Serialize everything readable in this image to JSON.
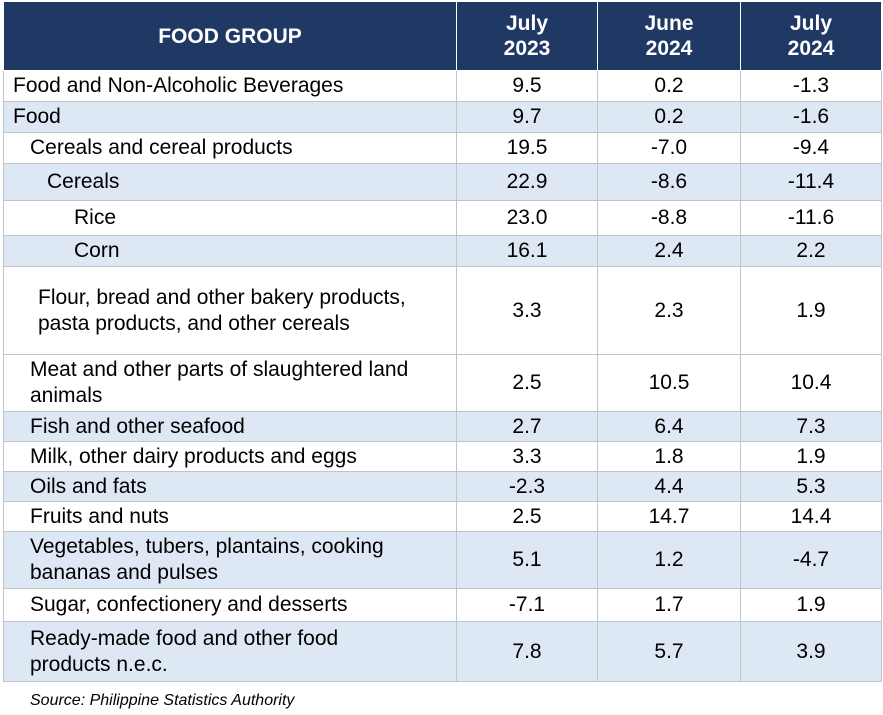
{
  "header": {
    "food_group": "FOOD GROUP",
    "col1_line1": "July",
    "col1_line2": "2023",
    "col2_line1": "June",
    "col2_line2": "2024",
    "col3_line1": "July",
    "col3_line2": "2024"
  },
  "rows": [
    {
      "label": "Food and Non-Alcoholic Beverages",
      "jul2023": "9.5",
      "jun2024": "0.2",
      "jul2024": "-1.3"
    },
    {
      "label": "Food",
      "jul2023": "9.7",
      "jun2024": "0.2",
      "jul2024": "-1.6"
    },
    {
      "label": "Cereals and cereal products",
      "jul2023": "19.5",
      "jun2024": "-7.0",
      "jul2024": "-9.4"
    },
    {
      "label": "Cereals",
      "jul2023": "22.9",
      "jun2024": "-8.6",
      "jul2024": "-11.4"
    },
    {
      "label": "Rice",
      "jul2023": "23.0",
      "jun2024": "-8.8",
      "jul2024": "-11.6"
    },
    {
      "label": "Corn",
      "jul2023": "16.1",
      "jun2024": "2.4",
      "jul2024": "2.2"
    },
    {
      "label": "Flour, bread and other bakery products, pasta products, and other cereals",
      "jul2023": "3.3",
      "jun2024": "2.3",
      "jul2024": "1.9"
    },
    {
      "label": "Meat and other parts of slaughtered land animals",
      "jul2023": "2.5",
      "jun2024": "10.5",
      "jul2024": "10.4"
    },
    {
      "label": "Fish and other seafood",
      "jul2023": "2.7",
      "jun2024": "6.4",
      "jul2024": "7.3"
    },
    {
      "label": "Milk, other dairy products and eggs",
      "jul2023": "3.3",
      "jun2024": "1.8",
      "jul2024": "1.9"
    },
    {
      "label": "Oils and fats",
      "jul2023": "-2.3",
      "jun2024": "4.4",
      "jul2024": "5.3"
    },
    {
      "label": "Fruits and nuts",
      "jul2023": "2.5",
      "jun2024": "14.7",
      "jul2024": "14.4"
    },
    {
      "label": "Vegetables, tubers, plantains, cooking bananas and pulses",
      "jul2023": "5.1",
      "jun2024": "1.2",
      "jul2024": "-4.7"
    },
    {
      "label": "Sugar, confectionery and desserts",
      "jul2023": "-7.1",
      "jun2024": "1.7",
      "jul2024": "1.9"
    },
    {
      "label": "Ready-made food and other food products n.e.c.",
      "jul2023": "7.8",
      "jun2024": "5.7",
      "jul2024": "3.9"
    }
  ],
  "source": "Source: Philippine Statistics Authority",
  "colors": {
    "header_bg": "#1f3864",
    "header_text": "#ffffff",
    "shaded_row": "#dde8f4",
    "border": "#bfc5cc"
  }
}
